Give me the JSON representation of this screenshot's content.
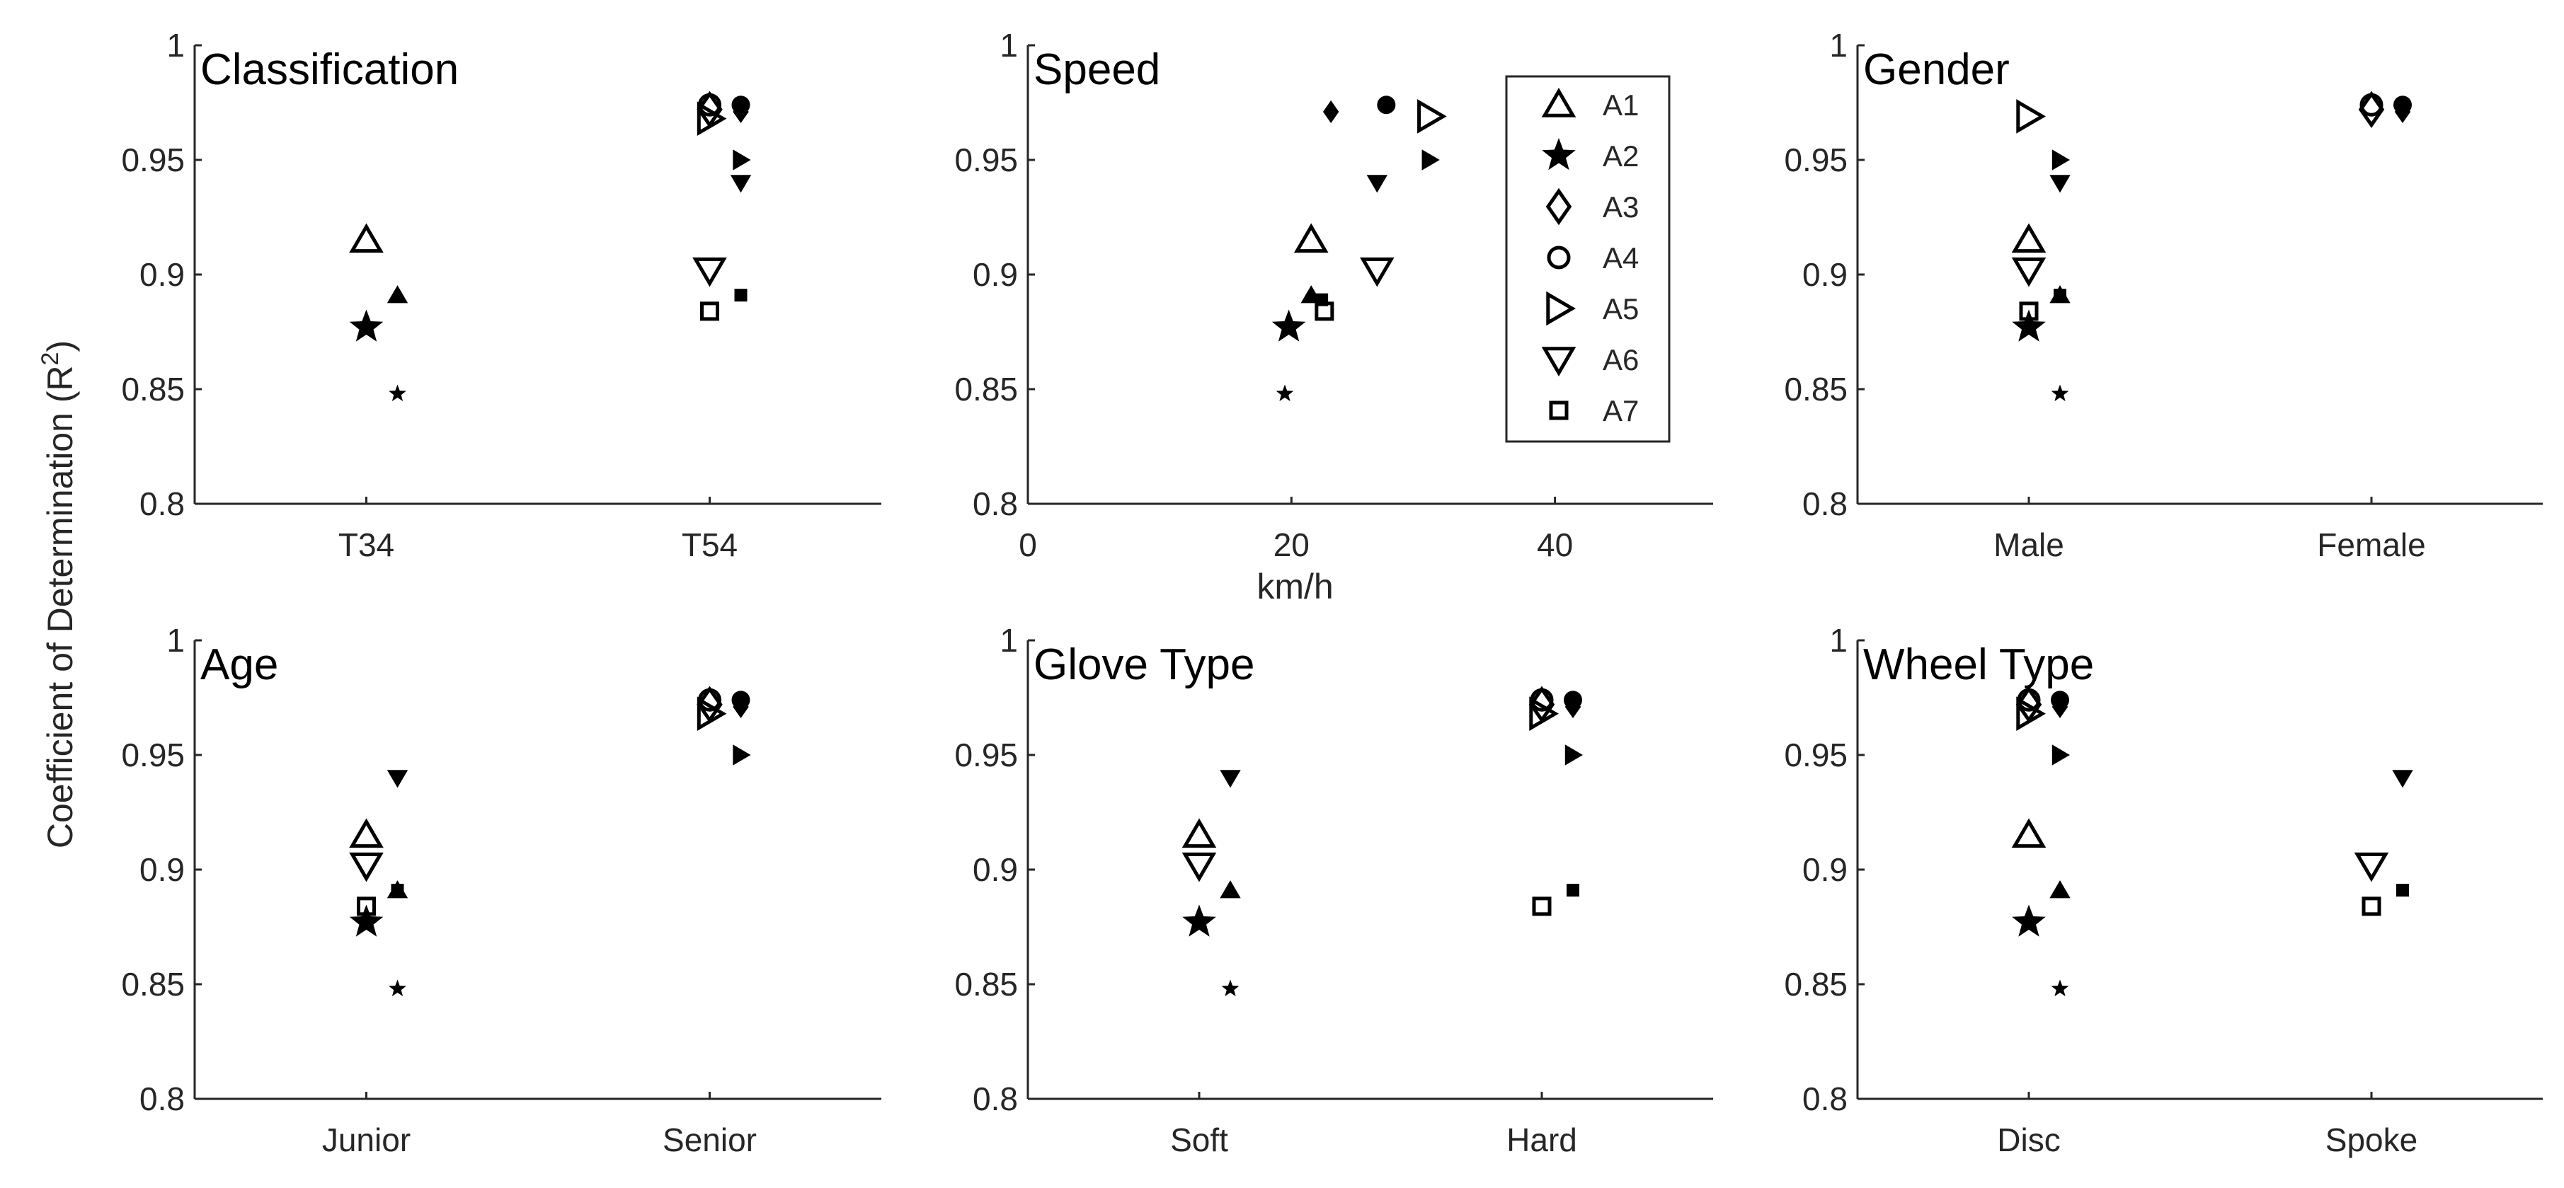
{
  "figure": {
    "ylabel": "Coefficient of Determination (R",
    "ylabel_sup": "2",
    "ylabel_close": ")"
  },
  "legend": {
    "entries": [
      {
        "name": "A1",
        "marker": "triangle-up-open"
      },
      {
        "name": "A2",
        "marker": "star-filled"
      },
      {
        "name": "A3",
        "marker": "diamond-open"
      },
      {
        "name": "A4",
        "marker": "circle-open"
      },
      {
        "name": "A5",
        "marker": "triangle-right-open"
      },
      {
        "name": "A6",
        "marker": "triangle-down-open"
      },
      {
        "name": "A7",
        "marker": "square-open"
      }
    ]
  },
  "chart_data": [
    {
      "id": "classification",
      "type": "scatter",
      "title": "Classification",
      "xaxis": "categorical",
      "categories": [
        "T34",
        "T54"
      ],
      "ylim": [
        0.8,
        1.0
      ],
      "yticks": [
        "0.8",
        "0.85",
        "0.9",
        "0.95",
        "1"
      ],
      "points": [
        {
          "series": "A1",
          "x": 0,
          "side": "main",
          "y": 0.915
        },
        {
          "series": "A2",
          "x": 0,
          "side": "main",
          "y": 0.877
        },
        {
          "series": "A1",
          "x": 0,
          "side": "offset",
          "y": 0.891
        },
        {
          "series": "A2",
          "x": 0,
          "side": "offset",
          "y": 0.848
        },
        {
          "series": "A3",
          "x": 1,
          "side": "main",
          "y": 0.972
        },
        {
          "series": "A4",
          "x": 1,
          "side": "main",
          "y": 0.974
        },
        {
          "series": "A5",
          "x": 1,
          "side": "main",
          "y": 0.968
        },
        {
          "series": "A6",
          "x": 1,
          "side": "main",
          "y": 0.902
        },
        {
          "series": "A7",
          "x": 1,
          "side": "main",
          "y": 0.884
        },
        {
          "series": "A3",
          "x": 1,
          "side": "offset",
          "y": 0.971
        },
        {
          "series": "A4",
          "x": 1,
          "side": "offset",
          "y": 0.974
        },
        {
          "series": "A5",
          "x": 1,
          "side": "offset",
          "y": 0.95
        },
        {
          "series": "A6",
          "x": 1,
          "side": "offset",
          "y": 0.94
        },
        {
          "series": "A7",
          "x": 1,
          "side": "offset",
          "y": 0.891
        }
      ]
    },
    {
      "id": "speed",
      "type": "scatter",
      "title": "Speed",
      "xaxis": "numeric",
      "xlabel": "km/h",
      "xlim": [
        0,
        52
      ],
      "xticks": [
        0,
        20,
        40
      ],
      "ylim": [
        0.8,
        1.0
      ],
      "yticks": [
        "0.8",
        "0.85",
        "0.9",
        "0.95",
        "1"
      ],
      "points": [
        {
          "series": "A2",
          "x": 19.5,
          "side": "offset",
          "y": 0.848
        },
        {
          "series": "A2",
          "x": 19.8,
          "side": "main",
          "y": 0.877
        },
        {
          "series": "A1",
          "x": 21.5,
          "side": "offset",
          "y": 0.891
        },
        {
          "series": "A1",
          "x": 21.5,
          "side": "main",
          "y": 0.915
        },
        {
          "series": "A7",
          "x": 22.3,
          "side": "offset",
          "y": 0.889
        },
        {
          "series": "A7",
          "x": 22.5,
          "side": "main",
          "y": 0.884
        },
        {
          "series": "A3",
          "x": 23.0,
          "side": "offset",
          "y": 0.971
        },
        {
          "series": "A6",
          "x": 26.5,
          "side": "main",
          "y": 0.902
        },
        {
          "series": "A6",
          "x": 26.5,
          "side": "offset",
          "y": 0.94
        },
        {
          "series": "A4",
          "x": 27.2,
          "side": "offset",
          "y": 0.974
        },
        {
          "series": "A5",
          "x": 30.5,
          "side": "main",
          "y": 0.969
        },
        {
          "series": "A5",
          "x": 30.5,
          "side": "offset",
          "y": 0.95
        }
      ]
    },
    {
      "id": "gender",
      "type": "scatter",
      "title": "Gender",
      "xaxis": "categorical",
      "categories": [
        "Male",
        "Female"
      ],
      "ylim": [
        0.8,
        1.0
      ],
      "yticks": [
        "0.8",
        "0.85",
        "0.9",
        "0.95",
        "1"
      ],
      "points": [
        {
          "series": "A5",
          "x": 0,
          "side": "main",
          "y": 0.969
        },
        {
          "series": "A1",
          "x": 0,
          "side": "main",
          "y": 0.915
        },
        {
          "series": "A6",
          "x": 0,
          "side": "main",
          "y": 0.902
        },
        {
          "series": "A7",
          "x": 0,
          "side": "main",
          "y": 0.884
        },
        {
          "series": "A2",
          "x": 0,
          "side": "main",
          "y": 0.877
        },
        {
          "series": "A5",
          "x": 0,
          "side": "offset",
          "y": 0.95
        },
        {
          "series": "A6",
          "x": 0,
          "side": "offset",
          "y": 0.94
        },
        {
          "series": "A1",
          "x": 0,
          "side": "offset",
          "y": 0.891
        },
        {
          "series": "A7",
          "x": 0,
          "side": "offset",
          "y": 0.891
        },
        {
          "series": "A2",
          "x": 0,
          "side": "offset",
          "y": 0.848
        },
        {
          "series": "A3",
          "x": 1,
          "side": "main",
          "y": 0.972
        },
        {
          "series": "A4",
          "x": 1,
          "side": "main",
          "y": 0.974
        },
        {
          "series": "A3",
          "x": 1,
          "side": "offset",
          "y": 0.971
        },
        {
          "series": "A4",
          "x": 1,
          "side": "offset",
          "y": 0.974
        }
      ]
    },
    {
      "id": "age",
      "type": "scatter",
      "title": "Age",
      "xaxis": "categorical",
      "categories": [
        "Junior",
        "Senior"
      ],
      "ylim": [
        0.8,
        1.0
      ],
      "yticks": [
        "0.8",
        "0.85",
        "0.9",
        "0.95",
        "1"
      ],
      "points": [
        {
          "series": "A1",
          "x": 0,
          "side": "main",
          "y": 0.915
        },
        {
          "series": "A6",
          "x": 0,
          "side": "main",
          "y": 0.902
        },
        {
          "series": "A7",
          "x": 0,
          "side": "main",
          "y": 0.884
        },
        {
          "series": "A2",
          "x": 0,
          "side": "main",
          "y": 0.877
        },
        {
          "series": "A6",
          "x": 0,
          "side": "offset",
          "y": 0.94
        },
        {
          "series": "A1",
          "x": 0,
          "side": "offset",
          "y": 0.891
        },
        {
          "series": "A7",
          "x": 0,
          "side": "offset",
          "y": 0.891
        },
        {
          "series": "A2",
          "x": 0,
          "side": "offset",
          "y": 0.848
        },
        {
          "series": "A3",
          "x": 1,
          "side": "main",
          "y": 0.972
        },
        {
          "series": "A4",
          "x": 1,
          "side": "main",
          "y": 0.974
        },
        {
          "series": "A5",
          "x": 1,
          "side": "main",
          "y": 0.968
        },
        {
          "series": "A3",
          "x": 1,
          "side": "offset",
          "y": 0.971
        },
        {
          "series": "A4",
          "x": 1,
          "side": "offset",
          "y": 0.974
        },
        {
          "series": "A5",
          "x": 1,
          "side": "offset",
          "y": 0.95
        }
      ]
    },
    {
      "id": "glove-type",
      "type": "scatter",
      "title": "Glove Type",
      "xaxis": "categorical",
      "categories": [
        "Soft",
        "Hard"
      ],
      "ylim": [
        0.8,
        1.0
      ],
      "yticks": [
        "0.8",
        "0.85",
        "0.9",
        "0.95",
        "1"
      ],
      "points": [
        {
          "series": "A1",
          "x": 0,
          "side": "main",
          "y": 0.915
        },
        {
          "series": "A6",
          "x": 0,
          "side": "main",
          "y": 0.902
        },
        {
          "series": "A2",
          "x": 0,
          "side": "main",
          "y": 0.877
        },
        {
          "series": "A6",
          "x": 0,
          "side": "offset",
          "y": 0.94
        },
        {
          "series": "A1",
          "x": 0,
          "side": "offset",
          "y": 0.891
        },
        {
          "series": "A2",
          "x": 0,
          "side": "offset",
          "y": 0.848
        },
        {
          "series": "A3",
          "x": 1,
          "side": "main",
          "y": 0.972
        },
        {
          "series": "A4",
          "x": 1,
          "side": "main",
          "y": 0.974
        },
        {
          "series": "A5",
          "x": 1,
          "side": "main",
          "y": 0.968
        },
        {
          "series": "A7",
          "x": 1,
          "side": "main",
          "y": 0.884
        },
        {
          "series": "A3",
          "x": 1,
          "side": "offset",
          "y": 0.971
        },
        {
          "series": "A4",
          "x": 1,
          "side": "offset",
          "y": 0.974
        },
        {
          "series": "A5",
          "x": 1,
          "side": "offset",
          "y": 0.95
        },
        {
          "series": "A7",
          "x": 1,
          "side": "offset",
          "y": 0.891
        }
      ]
    },
    {
      "id": "wheel-type",
      "type": "scatter",
      "title": "Wheel Type",
      "xaxis": "categorical",
      "categories": [
        "Disc",
        "Spoke"
      ],
      "ylim": [
        0.8,
        1.0
      ],
      "yticks": [
        "0.8",
        "0.85",
        "0.9",
        "0.95",
        "1"
      ],
      "points": [
        {
          "series": "A3",
          "x": 0,
          "side": "main",
          "y": 0.972
        },
        {
          "series": "A4",
          "x": 0,
          "side": "main",
          "y": 0.974
        },
        {
          "series": "A5",
          "x": 0,
          "side": "main",
          "y": 0.968
        },
        {
          "series": "A1",
          "x": 0,
          "side": "main",
          "y": 0.915
        },
        {
          "series": "A2",
          "x": 0,
          "side": "main",
          "y": 0.877
        },
        {
          "series": "A3",
          "x": 0,
          "side": "offset",
          "y": 0.971
        },
        {
          "series": "A4",
          "x": 0,
          "side": "offset",
          "y": 0.974
        },
        {
          "series": "A5",
          "x": 0,
          "side": "offset",
          "y": 0.95
        },
        {
          "series": "A1",
          "x": 0,
          "side": "offset",
          "y": 0.891
        },
        {
          "series": "A2",
          "x": 0,
          "side": "offset",
          "y": 0.848
        },
        {
          "series": "A6",
          "x": 1,
          "side": "main",
          "y": 0.902
        },
        {
          "series": "A7",
          "x": 1,
          "side": "main",
          "y": 0.884
        },
        {
          "series": "A6",
          "x": 1,
          "side": "offset",
          "y": 0.94
        },
        {
          "series": "A7",
          "x": 1,
          "side": "offset",
          "y": 0.891
        }
      ]
    }
  ]
}
